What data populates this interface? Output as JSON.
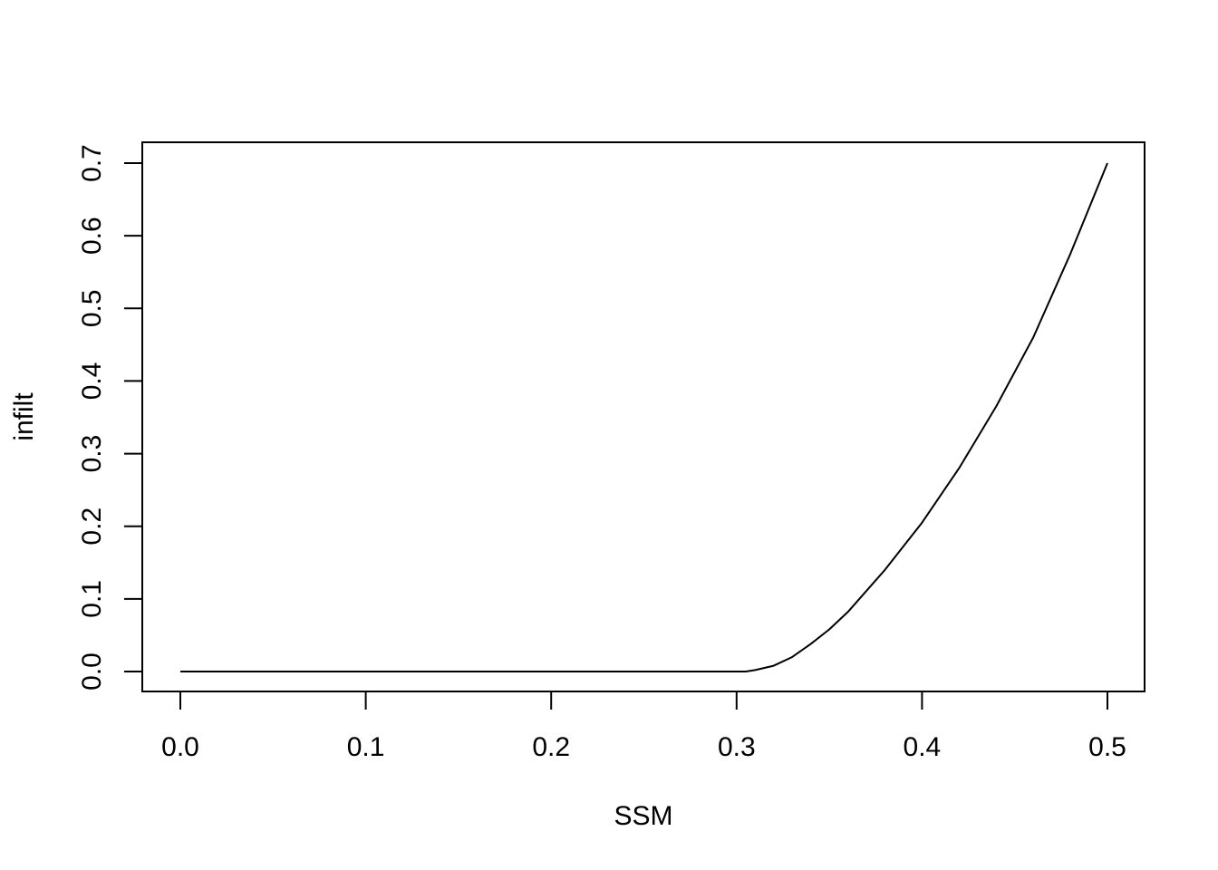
{
  "chart_data": {
    "type": "line",
    "title": "",
    "xlabel": "SSM",
    "ylabel": "infilt",
    "xlim": [
      0.0,
      0.5
    ],
    "ylim": [
      0.0,
      0.7
    ],
    "x_ticks": [
      "0.0",
      "0.1",
      "0.2",
      "0.3",
      "0.4",
      "0.5"
    ],
    "y_ticks": [
      "0.0",
      "0.1",
      "0.2",
      "0.3",
      "0.4",
      "0.5",
      "0.6",
      "0.7"
    ],
    "grid": false,
    "series": [
      {
        "x": [
          0.0,
          0.05,
          0.1,
          0.15,
          0.2,
          0.25,
          0.3,
          0.305,
          0.31,
          0.32,
          0.33,
          0.34,
          0.35,
          0.36,
          0.38,
          0.4,
          0.42,
          0.44,
          0.46,
          0.48,
          0.5
        ],
        "values": [
          0.0,
          0.0,
          0.0,
          0.0,
          0.0,
          0.0,
          0.0,
          0.0,
          0.002,
          0.008,
          0.02,
          0.038,
          0.058,
          0.082,
          0.14,
          0.205,
          0.28,
          0.365,
          0.46,
          0.575,
          0.7
        ]
      }
    ]
  }
}
